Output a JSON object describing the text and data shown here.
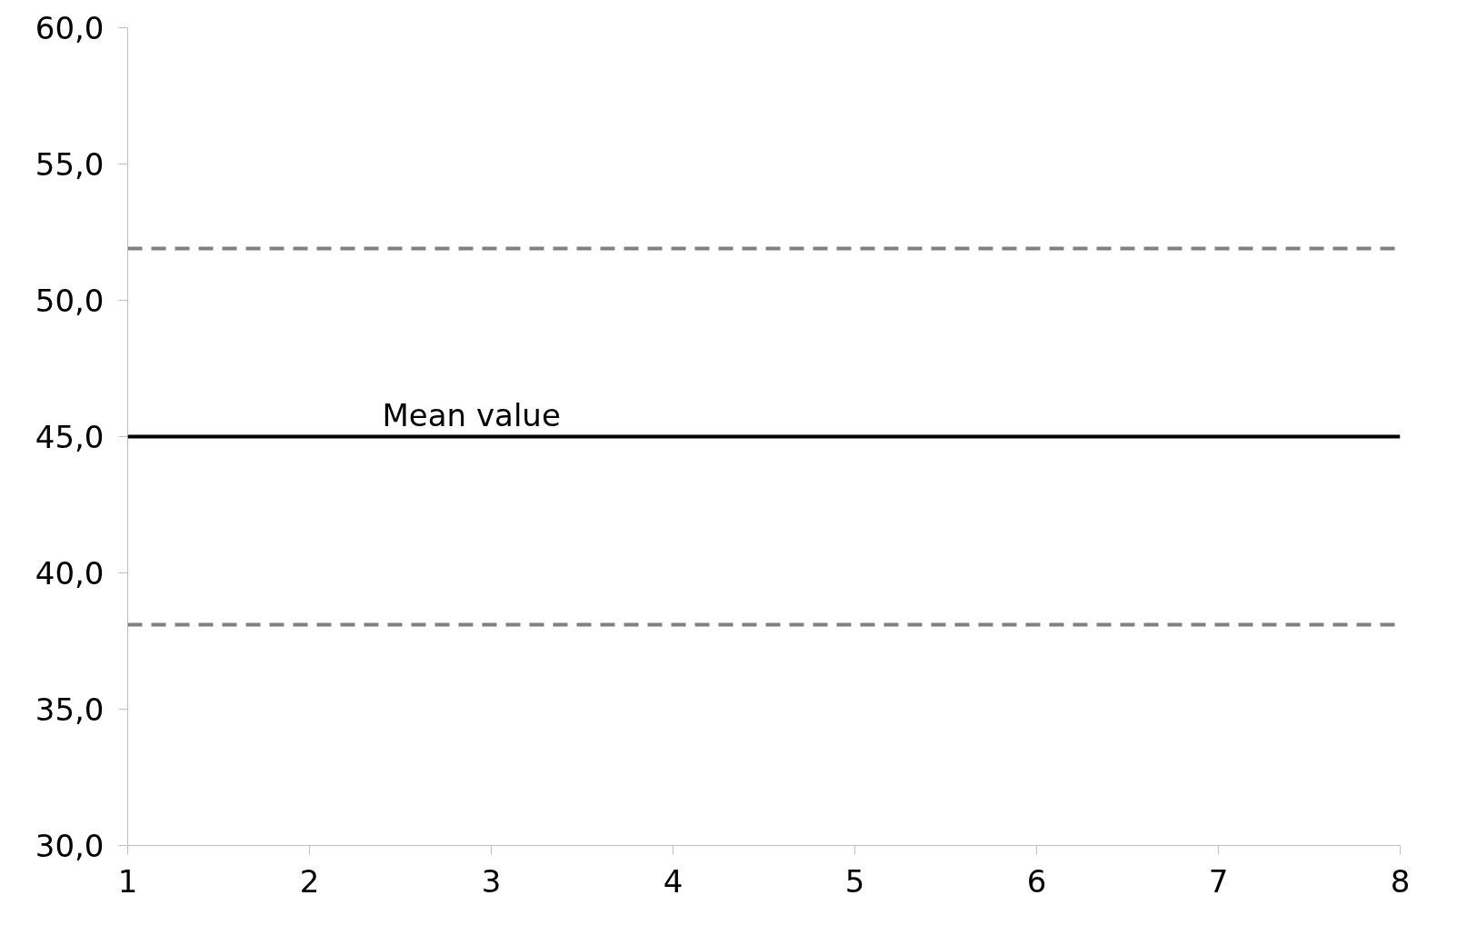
{
  "chart_data": {
    "type": "line",
    "ref_lines": [
      {
        "axis": "y",
        "value": 51.9,
        "color": "#808080",
        "line_style": "dashed"
      },
      {
        "axis": "y",
        "value": 45,
        "label": "Mean value",
        "color": "#000000",
        "line_style": "solid"
      },
      {
        "axis": "y",
        "value": 38.1,
        "color": "#808080",
        "line_style": "dashed"
      }
    ],
    "xlim": [
      1,
      8
    ],
    "xticks": [
      1,
      2,
      3,
      4,
      5,
      6,
      7,
      8
    ],
    "ylim": [
      30,
      60
    ],
    "yticks": [
      {
        "value": 30,
        "label": "30,0"
      },
      {
        "value": 35,
        "label": "35,0"
      },
      {
        "value": 40,
        "label": "40,0"
      },
      {
        "value": 45,
        "label": "45,0"
      },
      {
        "value": 50,
        "label": "50,0"
      },
      {
        "value": 55,
        "label": "55,0"
      },
      {
        "value": 60,
        "label": "60,0"
      }
    ],
    "grid": false
  }
}
